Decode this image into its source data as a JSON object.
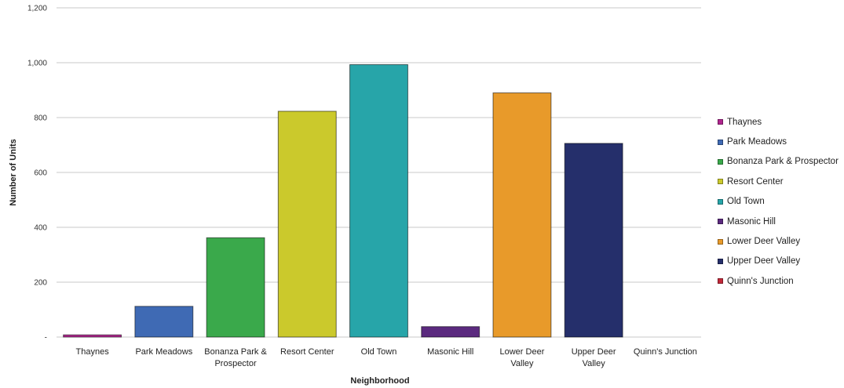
{
  "chart_data": {
    "type": "bar",
    "xlabel": "Neighborhood",
    "ylabel": "Number of Units",
    "ylim": [
      0,
      1200
    ],
    "yticks": [
      0,
      200,
      400,
      600,
      800,
      1000,
      1200
    ],
    "ytick_labels": [
      "-",
      "200",
      "400",
      "600",
      "800",
      "1,000",
      "1,200"
    ],
    "grid": true,
    "legend_position": "right",
    "categories": [
      {
        "label_lines": [
          "Thaynes"
        ],
        "name": "Thaynes",
        "value": 8,
        "color": "#b0268f"
      },
      {
        "label_lines": [
          "Park Meadows"
        ],
        "name": "Park Meadows",
        "value": 112,
        "color": "#3f6ab4"
      },
      {
        "label_lines": [
          "Bonanza Park &",
          "Prospector"
        ],
        "name": "Bonanza Park & Prospector",
        "value": 362,
        "color": "#3aa94b"
      },
      {
        "label_lines": [
          "Resort Center"
        ],
        "name": "Resort Center",
        "value": 823,
        "color": "#cbc92c"
      },
      {
        "label_lines": [
          "Old Town"
        ],
        "name": "Old Town",
        "value": 993,
        "color": "#27a5a9"
      },
      {
        "label_lines": [
          "Masonic Hill"
        ],
        "name": "Masonic Hill",
        "value": 38,
        "color": "#5b2a7f"
      },
      {
        "label_lines": [
          "Lower Deer",
          "Valley"
        ],
        "name": "Lower Deer Valley",
        "value": 890,
        "color": "#e89a2a"
      },
      {
        "label_lines": [
          "Upper Deer",
          "Valley"
        ],
        "name": "Upper Deer Valley",
        "value": 706,
        "color": "#252f6b"
      },
      {
        "label_lines": [
          "Quinn's Junction"
        ],
        "name": "Quinn's Junction",
        "value": 0,
        "color": "#c2283a"
      }
    ]
  }
}
